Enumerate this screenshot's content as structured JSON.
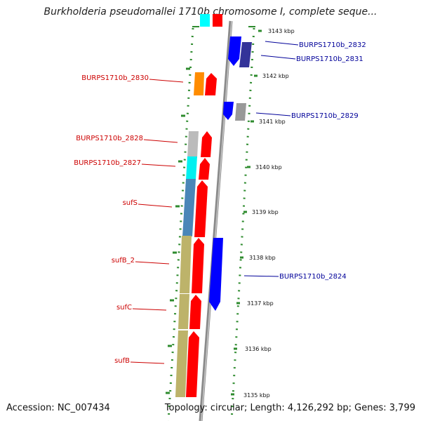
{
  "title": "Burkholderia pseudomallei 1710b chromosome I, complete seque...",
  "footer": {
    "accession": "Accession: NC_007434",
    "summary": "Topology: circular; Length: 4,126,292 bp; Genes: 3,799"
  },
  "scale": {
    "unit": "kbp",
    "ticks": [
      3143,
      3142,
      3141,
      3140,
      3139,
      3138,
      3137,
      3136,
      3135
    ]
  },
  "colors": {
    "forward": "#ff0000",
    "reverse": "#0000ff",
    "lightblue": "#00ffff",
    "steelblue": "#4a86b8",
    "khaki": "#bdb36a",
    "gray": "#999999",
    "orange": "#ff8c00",
    "navy": "#333399",
    "scale_dots": "#2e8b2e",
    "backbone": "#9a9a9a"
  },
  "genes_left": [
    {
      "label": "BURPS1710b_2830"
    },
    {
      "label": "BURPS1710b_2828"
    },
    {
      "label": "BURPS1710b_2827"
    },
    {
      "label": "sufS"
    },
    {
      "label": "sufB_2"
    },
    {
      "label": "sufC"
    },
    {
      "label": "sufB"
    }
  ],
  "genes_right": [
    {
      "label": "BURPS1710b_2832"
    },
    {
      "label": "BURPS1710b_2831"
    },
    {
      "label": "BURPS1710b_2829"
    },
    {
      "label": "BURPS1710b_2824"
    }
  ]
}
